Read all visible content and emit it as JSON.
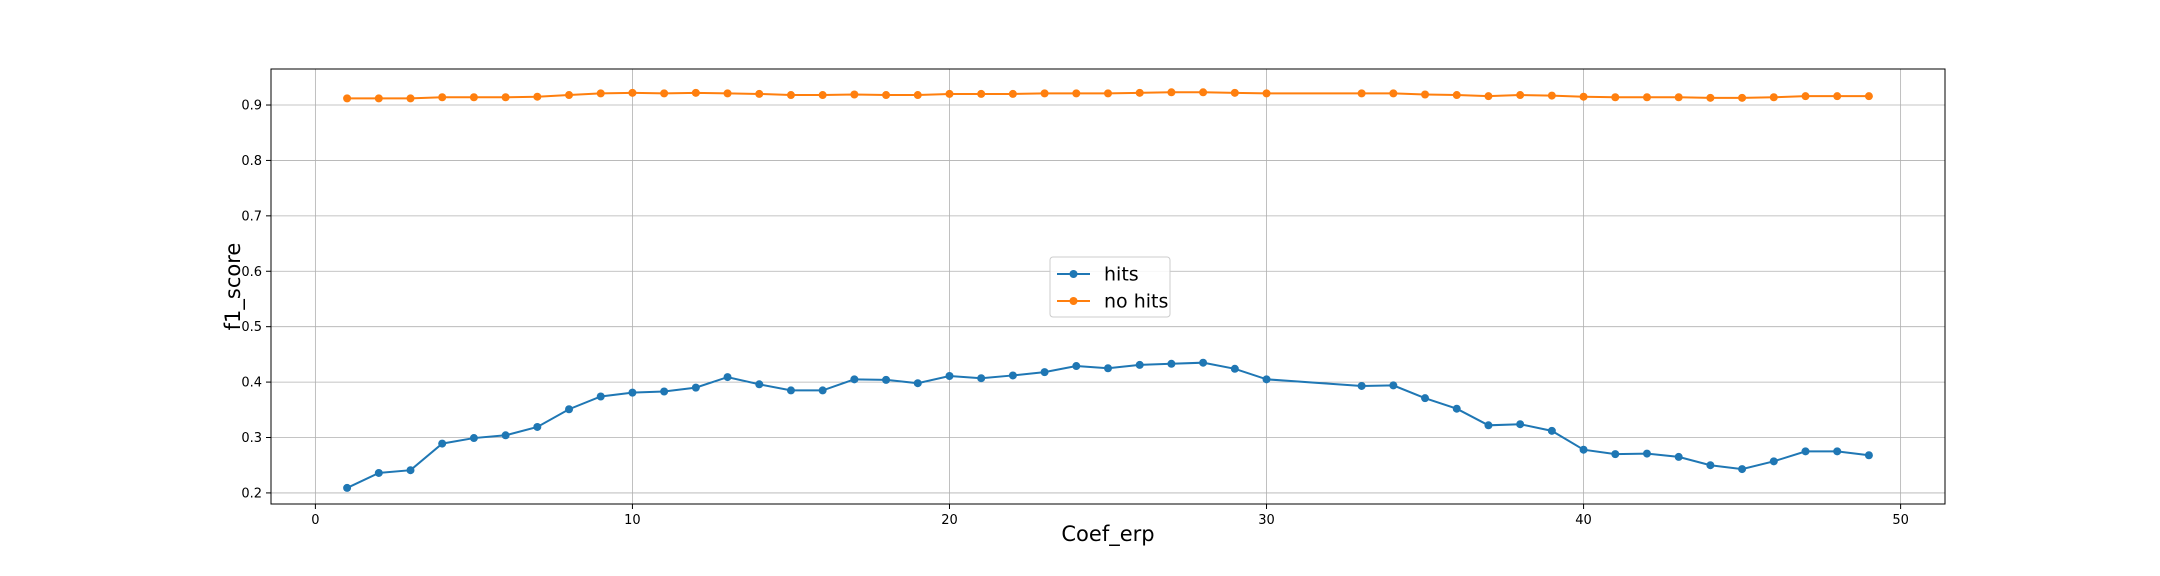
{
  "chart_data": {
    "type": "line",
    "title": "",
    "xlabel": "Coef_erp",
    "ylabel": "f1_score",
    "xlim": [
      -1.4,
      51.4
    ],
    "ylim": [
      0.18,
      0.965
    ],
    "xticks": [
      0,
      10,
      20,
      30,
      40,
      50
    ],
    "yticks": [
      0.2,
      0.3,
      0.4,
      0.5,
      0.6,
      0.7,
      0.8,
      0.9
    ],
    "grid": true,
    "legend_position": "center",
    "x": [
      1,
      2,
      3,
      4,
      5,
      6,
      7,
      8,
      9,
      10,
      11,
      12,
      13,
      14,
      15,
      16,
      17,
      18,
      19,
      20,
      21,
      22,
      23,
      24,
      25,
      26,
      27,
      28,
      29,
      30,
      33,
      34,
      35,
      36,
      37,
      38,
      39,
      40,
      41,
      42,
      43,
      44,
      45,
      46,
      47,
      48,
      49
    ],
    "series": [
      {
        "name": "hits",
        "color": "#1f77b4",
        "values": [
          0.209,
          0.236,
          0.241,
          0.289,
          0.299,
          0.304,
          0.319,
          0.351,
          0.374,
          0.381,
          0.383,
          0.39,
          0.409,
          0.396,
          0.385,
          0.385,
          0.405,
          0.404,
          0.398,
          0.411,
          0.407,
          0.412,
          0.418,
          0.429,
          0.425,
          0.431,
          0.433,
          0.435,
          0.424,
          0.405,
          0.393,
          0.394,
          0.371,
          0.352,
          0.322,
          0.324,
          0.312,
          0.278,
          0.27,
          0.271,
          0.265,
          0.25,
          0.243,
          0.257,
          0.275,
          0.275,
          0.268
        ]
      },
      {
        "name": "no hits",
        "color": "#ff7f0e",
        "values": [
          0.912,
          0.912,
          0.912,
          0.914,
          0.914,
          0.914,
          0.915,
          0.918,
          0.921,
          0.922,
          0.921,
          0.922,
          0.921,
          0.92,
          0.918,
          0.918,
          0.919,
          0.918,
          0.918,
          0.92,
          0.92,
          0.92,
          0.921,
          0.921,
          0.921,
          0.922,
          0.923,
          0.923,
          0.922,
          0.921,
          0.921,
          0.921,
          0.919,
          0.918,
          0.916,
          0.918,
          0.917,
          0.915,
          0.914,
          0.914,
          0.914,
          0.913,
          0.913,
          0.914,
          0.916,
          0.916,
          0.916
        ]
      }
    ]
  }
}
